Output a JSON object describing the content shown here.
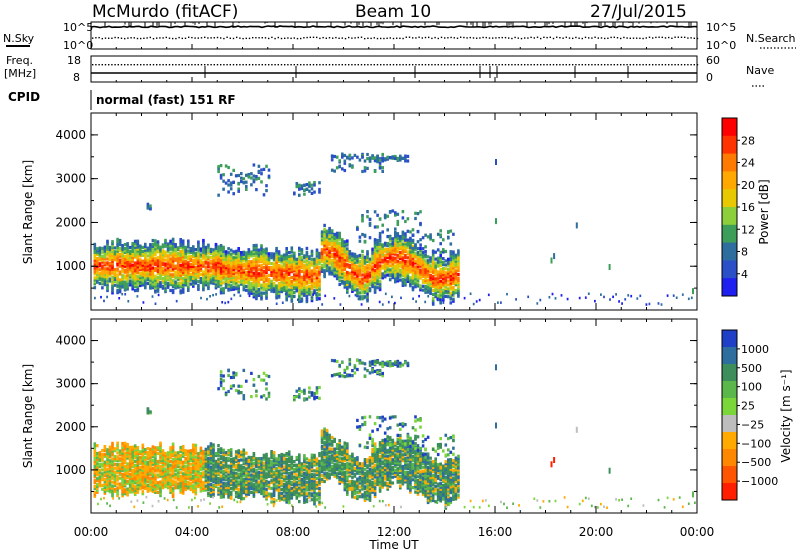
{
  "header": {
    "station": "McMurdo (fitACF)",
    "beam": "Beam 10",
    "date": "27/Jul/2015",
    "cpid_label": "CPID",
    "cpid_text": "normal (fast) 151 RF"
  },
  "top_panel": {
    "left_label": "N.Sky",
    "right_label": "N.Search",
    "tick_top": "10^5",
    "tick_bottom": "10^0",
    "freq_label_line1": "Freq.",
    "freq_label_line2": "[MHz]",
    "freq_ticks": [
      "18",
      "8"
    ],
    "nave_label": "Nave",
    "nave_ticks": [
      "60",
      "0"
    ]
  },
  "chart_data": [
    {
      "type": "heatmap",
      "name": "power",
      "ylabel": "Slant Range [km]",
      "ylim": [
        0,
        4500
      ],
      "yticks": [
        "4000",
        "3000",
        "2000",
        "1000"
      ],
      "xlim": [
        "00:00",
        "24:00"
      ],
      "xticks": [
        "00:00",
        "04:00",
        "08:00",
        "12:00",
        "16:00",
        "20:00",
        "00:00"
      ],
      "colorbar": {
        "label": "Power [dB]",
        "ticks": [
          "28",
          "24",
          "20",
          "16",
          "12",
          "8",
          "4"
        ],
        "colors": [
          "#ff0000",
          "#ff3300",
          "#ff7a00",
          "#ffa800",
          "#e8c800",
          "#8ccf3a",
          "#3d9e5a",
          "#2d6e9e",
          "#2b4fc7",
          "#1f1ff0"
        ]
      }
    },
    {
      "type": "heatmap",
      "name": "velocity",
      "ylabel": "Slant Range [km]",
      "ylim": [
        0,
        4500
      ],
      "yticks": [
        "4000",
        "3000",
        "2000",
        "1000"
      ],
      "xlabel": "Time UT",
      "xlim": [
        "00:00",
        "24:00"
      ],
      "xticks": [
        "00:00",
        "04:00",
        "08:00",
        "12:00",
        "16:00",
        "20:00",
        "00:00"
      ],
      "colorbar": {
        "label": "Velocity [m s⁻¹]",
        "ticks": [
          "1000",
          "500",
          "100",
          "25",
          "−25",
          "−100",
          "−500",
          "−1000"
        ],
        "colors": [
          "#1f3fc7",
          "#2d6e9e",
          "#3d8e5a",
          "#5ab84a",
          "#7bd63a",
          "#bdbdbd",
          "#ffaa00",
          "#ff8800",
          "#ff5500",
          "#ff1f00"
        ]
      }
    }
  ]
}
